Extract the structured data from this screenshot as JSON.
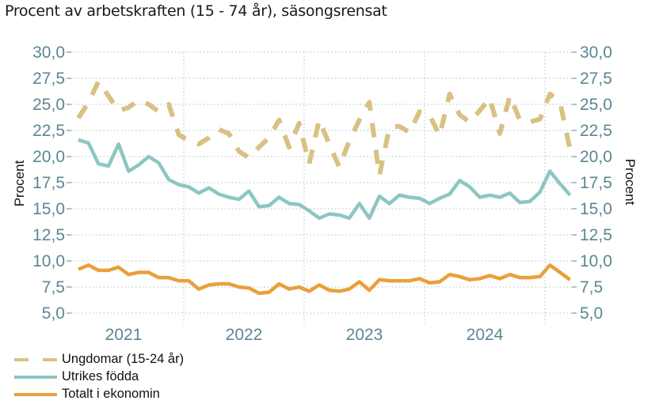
{
  "title": "Procent av arbetskraften (15 - 74 år), säsongsrensat",
  "colors": {
    "ungdomar": "#d8c182",
    "utrikes": "#8cc7c2",
    "totalt": "#e9a03b",
    "grid": "#b9cdd1",
    "tick": "#5b8793"
  },
  "chart_data": {
    "type": "line",
    "title": "Procent av arbetskraften (15 - 74 år), säsongsrensat",
    "ylabel_left": "Procent",
    "ylabel_right": "Procent",
    "ylim": [
      5,
      30
    ],
    "yticks": [
      "30,0",
      "27,5",
      "25,0",
      "22,5",
      "20,0",
      "17,5",
      "15,0",
      "12,5",
      "10,0",
      "7,5",
      "5,0"
    ],
    "ytick_values": [
      30,
      27.5,
      25,
      22.5,
      20,
      17.5,
      15,
      12.5,
      10,
      7.5,
      5
    ],
    "xlabels": [
      "2021",
      "2022",
      "2023",
      "2024"
    ],
    "x_start": "2021-02",
    "x_end": "2025-03",
    "grid": true,
    "legend_position": "bottom-left",
    "series": [
      {
        "name": "Ungdomar (15-24 år)",
        "style": "dashed",
        "color_key": "ungdomar",
        "values": [
          23.7,
          25.2,
          27.2,
          25.8,
          24.4,
          24.7,
          25.4,
          25.0,
          24.3,
          25.0,
          22.1,
          21.5,
          21.2,
          21.8,
          22.6,
          22.2,
          20.5,
          19.9,
          20.9,
          21.8,
          23.5,
          20.9,
          23.2,
          19.3,
          23.5,
          21.2,
          19.0,
          21.5,
          23.5,
          25.2,
          18.2,
          22.8,
          22.9,
          22.3,
          24.3,
          24.0,
          22.0,
          26.0,
          24.0,
          23.3,
          24.4,
          25.6,
          22.2,
          25.8,
          23.5,
          23.3,
          23.6,
          26.0,
          25.2,
          20.7
        ]
      },
      {
        "name": "Utrikes födda",
        "style": "solid",
        "color_key": "utrikes",
        "values": [
          21.6,
          21.3,
          19.3,
          19.1,
          21.2,
          18.6,
          19.2,
          20.0,
          19.4,
          17.8,
          17.3,
          17.1,
          16.5,
          17.0,
          16.4,
          16.1,
          15.9,
          16.7,
          15.2,
          15.3,
          16.1,
          15.5,
          15.4,
          14.8,
          14.1,
          14.5,
          14.4,
          14.1,
          15.5,
          14.1,
          16.2,
          15.5,
          16.3,
          16.1,
          16.0,
          15.5,
          16.0,
          16.4,
          17.7,
          17.1,
          16.1,
          16.3,
          16.1,
          16.5,
          15.6,
          15.7,
          16.6,
          18.6,
          17.4,
          16.3
        ]
      },
      {
        "name": "Totalt i ekonomin",
        "style": "solid",
        "color_key": "totalt",
        "values": [
          9.2,
          9.6,
          9.1,
          9.1,
          9.4,
          8.7,
          8.9,
          8.9,
          8.4,
          8.4,
          8.1,
          8.1,
          7.3,
          7.7,
          7.8,
          7.8,
          7.5,
          7.4,
          6.9,
          7.0,
          7.8,
          7.3,
          7.5,
          7.1,
          7.7,
          7.2,
          7.1,
          7.3,
          8.0,
          7.2,
          8.2,
          8.1,
          8.1,
          8.1,
          8.3,
          7.9,
          8.0,
          8.7,
          8.5,
          8.2,
          8.3,
          8.6,
          8.3,
          8.7,
          8.4,
          8.4,
          8.5,
          9.6,
          8.9,
          8.2
        ]
      }
    ]
  }
}
